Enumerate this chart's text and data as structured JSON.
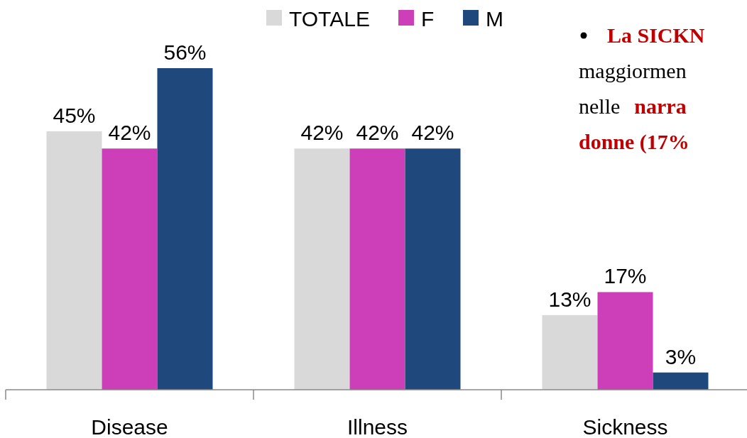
{
  "chart_data": {
    "type": "bar",
    "categories": [
      "Disease",
      "Illness",
      "Sickness"
    ],
    "series": [
      {
        "name": "TOTALE",
        "color": "#d9d9d9",
        "values": [
          45,
          42,
          13
        ],
        "value_labels": [
          "45%",
          "42%",
          "13%"
        ]
      },
      {
        "name": "F",
        "color": "#cc3fb9",
        "values": [
          42,
          42,
          17
        ],
        "value_labels": [
          "42%",
          "42%",
          "17%"
        ]
      },
      {
        "name": "M",
        "color": "#1f497d",
        "values": [
          56,
          42,
          3
        ],
        "value_labels": [
          "56%",
          "42%",
          "3%"
        ]
      }
    ],
    "legend": "top",
    "annotations": [
      "La SICKN",
      "maggiormen",
      "nelle narra",
      "donne (17%"
    ]
  }
}
